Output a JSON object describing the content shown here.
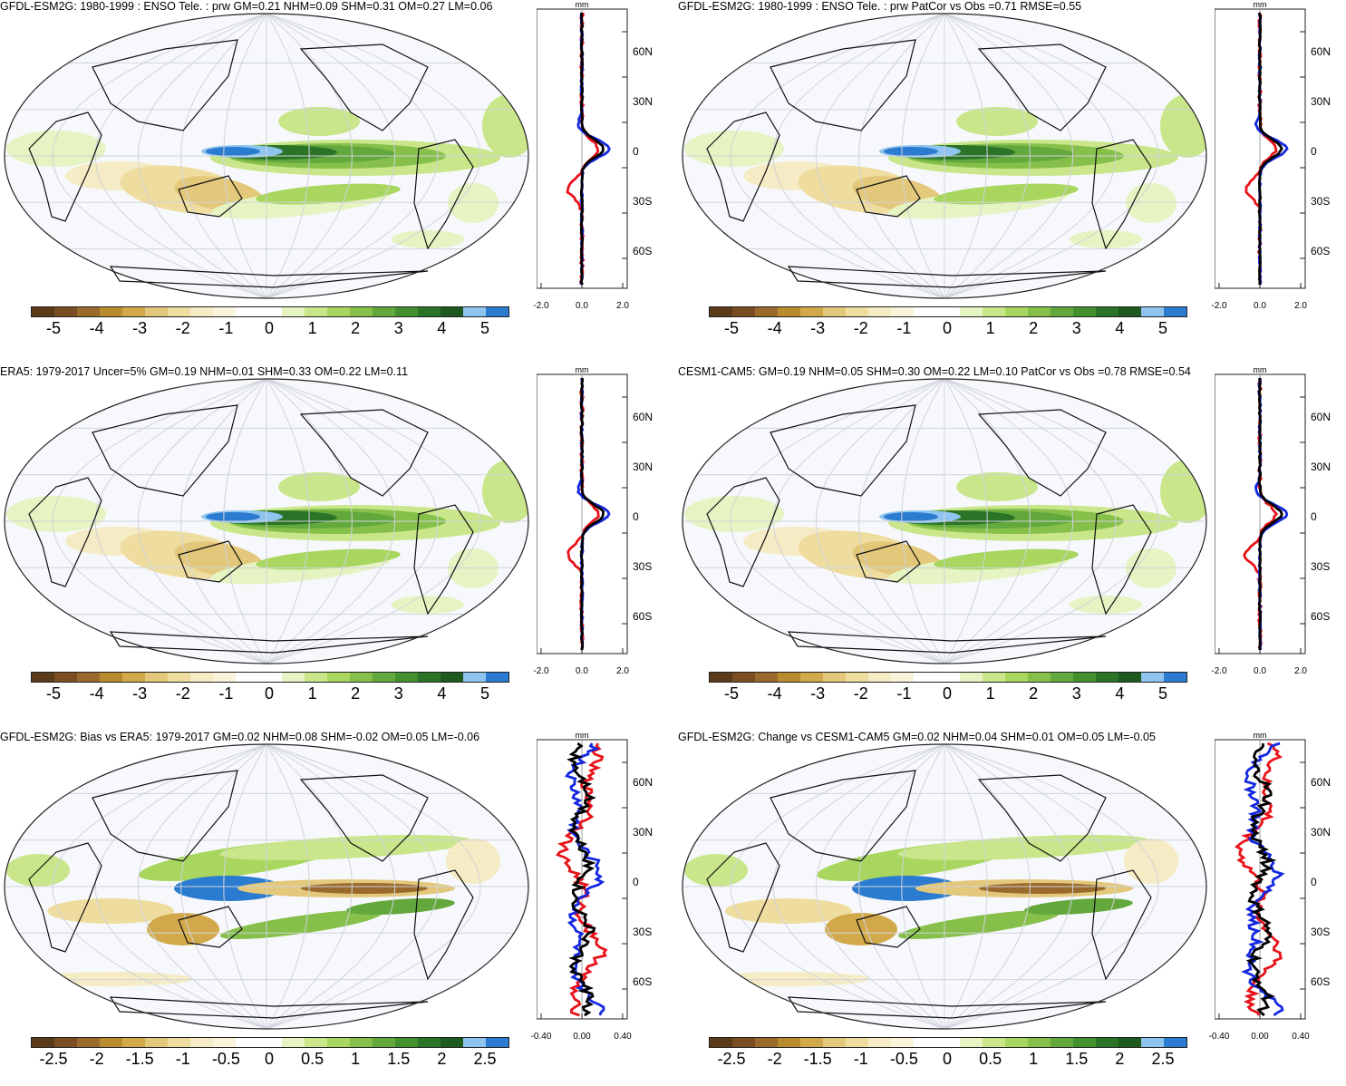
{
  "panels": [
    {
      "title": "GFDL-ESM2G: 1980-1999 : ENSO Tele. : prw GM=0.21 NHM=0.09 SHM=0.31 OM=0.27 LM=0.06",
      "map_type": "model",
      "colorbar_labels": [
        "-5",
        "-4",
        "-3",
        "-2",
        "-1",
        "0",
        "1",
        "2",
        "3",
        "4",
        "5"
      ],
      "profile_unit": "mm",
      "profile_xticks": [
        "-2.0",
        "0.0",
        "2.0"
      ],
      "profile_yticks": [
        "60N",
        "30N",
        "0",
        "30S",
        "60S"
      ]
    },
    {
      "title": "GFDL-ESM2G: 1980-1999 : ENSO Tele. : prw PatCor vs Obs =0.71 RMSE=0.55",
      "map_type": "model",
      "colorbar_labels": [
        "-5",
        "-4",
        "-3",
        "-2",
        "-1",
        "0",
        "1",
        "2",
        "3",
        "4",
        "5"
      ],
      "profile_unit": "mm",
      "profile_xticks": [
        "-2.0",
        "0.0",
        "2.0"
      ],
      "profile_yticks": [
        "60N",
        "30N",
        "0",
        "30S",
        "60S"
      ]
    },
    {
      "title": "ERA5: 1979-2017 Uncer=5% GM=0.19 NHM=0.01 SHM=0.33 OM=0.22 LM=0.11",
      "map_type": "obs",
      "colorbar_labels": [
        "-5",
        "-4",
        "-3",
        "-2",
        "-1",
        "0",
        "1",
        "2",
        "3",
        "4",
        "5"
      ],
      "profile_unit": "mm",
      "profile_xticks": [
        "-2.0",
        "0.0",
        "2.0"
      ],
      "profile_yticks": [
        "60N",
        "30N",
        "0",
        "30S",
        "60S"
      ]
    },
    {
      "title": "CESM1-CAM5: GM=0.19 NHM=0.05 SHM=0.30 OM=0.22 LM=0.10 PatCor vs Obs =0.78 RMSE=0.54",
      "map_type": "obs",
      "colorbar_labels": [
        "-5",
        "-4",
        "-3",
        "-2",
        "-1",
        "0",
        "1",
        "2",
        "3",
        "4",
        "5"
      ],
      "profile_unit": "mm",
      "profile_xticks": [
        "-2.0",
        "0.0",
        "2.0"
      ],
      "profile_yticks": [
        "60N",
        "30N",
        "0",
        "30S",
        "60S"
      ]
    },
    {
      "title": "GFDL-ESM2G: Bias vs ERA5: 1979-2017 GM=0.02 NHM=0.08 SHM=-0.02 OM=0.05 LM=-0.06",
      "map_type": "diff",
      "colorbar_labels": [
        "-2.5",
        "-2",
        "-1.5",
        "-1",
        "-0.5",
        "0",
        "0.5",
        "1",
        "1.5",
        "2",
        "2.5"
      ],
      "profile_unit": "mm",
      "profile_xticks": [
        "-0.40",
        "0.00",
        "0.40"
      ],
      "profile_yticks": [
        "60N",
        "30N",
        "0",
        "30S",
        "60S"
      ]
    },
    {
      "title": "GFDL-ESM2G: Change vs CESM1-CAM5 GM=0.02 NHM=0.04 SHM=0.01 OM=0.05 LM=-0.05",
      "map_type": "diff",
      "colorbar_labels": [
        "-2.5",
        "-2",
        "-1.5",
        "-1",
        "-0.5",
        "0",
        "0.5",
        "1",
        "1.5",
        "2",
        "2.5"
      ],
      "profile_unit": "mm",
      "profile_xticks": [
        "-0.40",
        "0.00",
        "0.40"
      ],
      "profile_yticks": [
        "60N",
        "30N",
        "0",
        "30S",
        "60S"
      ]
    }
  ],
  "colorbar_palette": [
    "#5b3a1a",
    "#7a4e22",
    "#9a6a2c",
    "#b98b2f",
    "#d2a94a",
    "#e3c77a",
    "#efdda0",
    "#f5ebc4",
    "#faf4dc",
    "#ffffff",
    "#ffffff",
    "#e6f3c2",
    "#c9e68a",
    "#a8d65f",
    "#86c04a",
    "#62a83c",
    "#43902f",
    "#2a7327",
    "#1e5a1e",
    "#8ec4ee",
    "#2b7bd0"
  ],
  "series_colors": {
    "model": "#e8131a",
    "obs": "#1428e0",
    "mean": "#000000"
  }
}
